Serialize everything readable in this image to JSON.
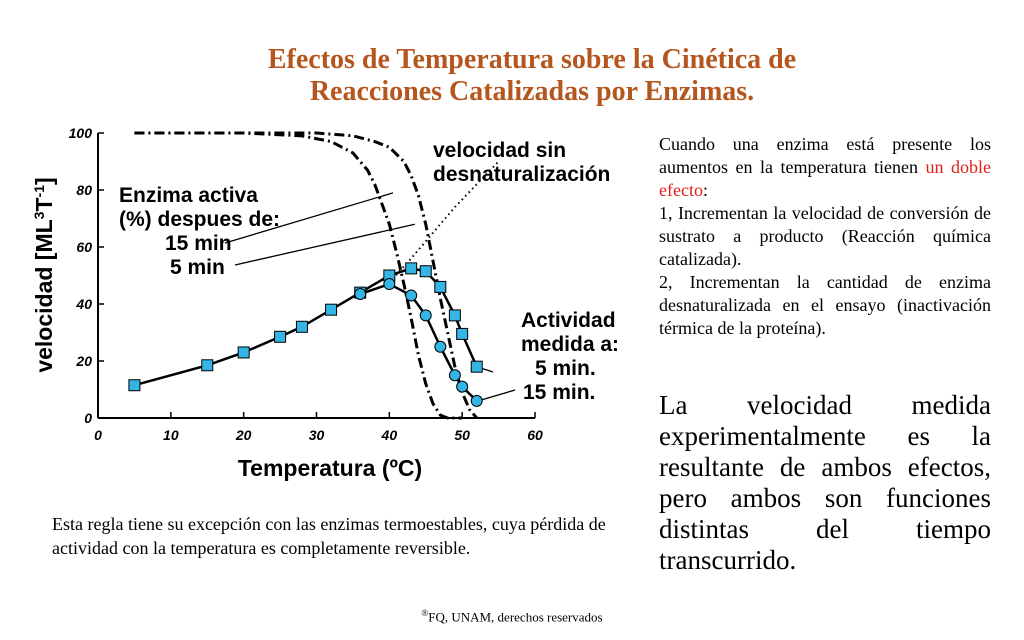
{
  "title": {
    "line1": "Efectos de Temperatura sobre la Cinética de",
    "line2": "Reacciones Catalizadas por Enzimas."
  },
  "chart_data": {
    "type": "line",
    "xlabel": "Temperatura (ºC)",
    "ylabel_main": "velocidad [ML",
    "ylabel_sup1": "3",
    "ylabel_mid": "T",
    "ylabel_sup2": "-1",
    "ylabel_end": "]",
    "xlim": [
      0,
      60
    ],
    "ylim": [
      0,
      100
    ],
    "x_ticks": [
      "0",
      "10",
      "20",
      "30",
      "40",
      "50",
      "60"
    ],
    "y_ticks": [
      "0",
      "20",
      "40",
      "60",
      "80",
      "100"
    ],
    "grid": false,
    "colors": {
      "marker_fill": "#33b5e5",
      "line": "#000000",
      "title": "#b5561e",
      "highlight": "#e0201b"
    },
    "annotations": {
      "enzima_activa": [
        "Enzima activa",
        "(%) despues de:",
        "15 min",
        "5 min"
      ],
      "velocidad_sin": [
        "velocidad sin",
        "desnaturalización"
      ],
      "actividad": [
        "Actividad",
        "medida a:",
        "5 min.",
        "15 min."
      ]
    },
    "series": [
      {
        "name": "5 min.",
        "marker": "square",
        "x": [
          5,
          15,
          20,
          25,
          28,
          32,
          36,
          40,
          43,
          45,
          47,
          49,
          50,
          52
        ],
        "y": [
          11.5,
          18.5,
          23,
          28.5,
          32,
          38,
          44,
          50,
          52.5,
          51.5,
          46,
          36,
          29.5,
          18
        ]
      },
      {
        "name": "15 min.",
        "marker": "circle",
        "x": [
          36,
          40,
          43,
          45,
          47,
          49,
          50,
          52
        ],
        "y": [
          43.5,
          47,
          43,
          36,
          25,
          15,
          11,
          6
        ]
      },
      {
        "name": "Enzima activa 5 min",
        "style": "dashdot",
        "x": [
          5,
          20,
          30,
          35,
          38,
          40,
          42,
          43,
          44,
          45,
          46,
          47,
          48,
          49,
          50,
          51,
          52
        ],
        "y": [
          100,
          100,
          100,
          99,
          97,
          95,
          90,
          85,
          78,
          68,
          55,
          42,
          30,
          18,
          9,
          3,
          0
        ]
      },
      {
        "name": "Enzima activa 15 min",
        "style": "dashdot",
        "x": [
          5,
          20,
          28,
          32,
          35,
          37,
          38,
          39,
          40,
          41,
          42,
          43,
          44,
          45,
          46,
          47,
          48,
          50
        ],
        "y": [
          100,
          100,
          99,
          97,
          93,
          87,
          82,
          75,
          68,
          58,
          47,
          35,
          22,
          12,
          5,
          1,
          0,
          0
        ]
      },
      {
        "name": "velocidad sin desnaturalización",
        "style": "dotted",
        "x": [
          40,
          43,
          46,
          49,
          52,
          55
        ],
        "y": [
          47.5,
          56,
          65,
          74,
          82,
          90
        ]
      }
    ]
  },
  "right_text": {
    "p1_before": "Cuando una enzima está presente los aumentos en la temperatura tienen ",
    "p1_highlight": "un doble efecto",
    "p1_after": ":",
    "p2": "1, Incrementan la velocidad de conversión de sustrato a producto (Reacción química catalizada).",
    "p3": "2, Incrementan la cantidad de enzima desnaturalizada en el ensayo (inactivación térmica de la proteína)."
  },
  "conclusion": "La velocidad medida experimentalmente es la resultante de ambos efectos, pero ambos son funciones distintas del tiempo transcurrido.",
  "exception": "Esta regla tiene su excepción con las enzimas termoestables, cuya pérdida de actividad con la temperatura es completamente reversible.",
  "copyright": {
    "symbol": "®",
    "text": "FQ, UNAM, derechos reservados"
  }
}
